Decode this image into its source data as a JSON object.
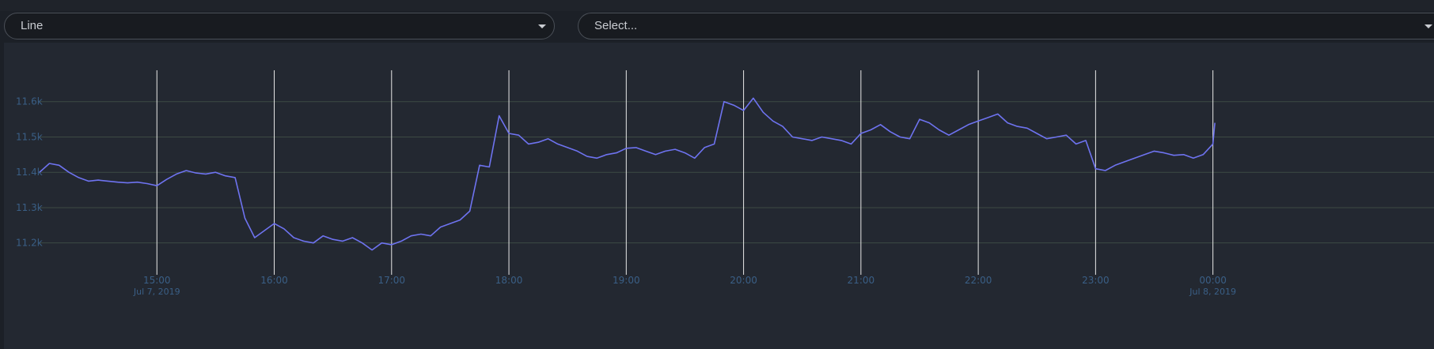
{
  "controls": {
    "chart_type": "Line",
    "series_placeholder": "Select..."
  },
  "colors": {
    "background": "#1c2027",
    "panel": "#232831",
    "line": "#6e73f0",
    "gridline": "#3d4a44",
    "vline": "#e8e8e8",
    "label": "#3a5f86"
  },
  "chart_data": {
    "type": "line",
    "title": "",
    "xlabel": "",
    "ylabel": "",
    "ylim": [
      11130,
      11700
    ],
    "xlim": [
      "2019-07-07 14:00",
      "2019-07-08 00:05"
    ],
    "grid": "horizontal",
    "y_ticks": [
      11200,
      11300,
      11400,
      11500,
      11600
    ],
    "y_tick_labels": [
      "11.2k",
      "11.3k",
      "11.4k",
      "11.5k",
      "11.6k"
    ],
    "x_ticks": [
      "15:00",
      "16:00",
      "17:00",
      "18:00",
      "19:00",
      "20:00",
      "21:00",
      "22:00",
      "23:00",
      "00:00"
    ],
    "x_date_labels": [
      {
        "tick": "15:00",
        "label": "Jul 7, 2019"
      },
      {
        "tick": "00:00",
        "label": "Jul 8, 2019"
      }
    ],
    "series": [
      {
        "time": [
          "14:00",
          "14:05",
          "14:10",
          "14:15",
          "14:20",
          "14:25",
          "14:30",
          "14:35",
          "14:40",
          "14:45",
          "14:50",
          "14:55",
          "15:00",
          "15:05",
          "15:10",
          "15:15",
          "15:20",
          "15:25",
          "15:30",
          "15:35",
          "15:40",
          "15:45",
          "15:50",
          "15:55",
          "16:00",
          "16:05",
          "16:10",
          "16:15",
          "16:20",
          "16:25",
          "16:30",
          "16:35",
          "16:40",
          "16:45",
          "16:50",
          "16:55",
          "17:00",
          "17:05",
          "17:10",
          "17:15",
          "17:20",
          "17:25",
          "17:30",
          "17:35",
          "17:40",
          "17:45",
          "17:50",
          "17:55",
          "18:00",
          "18:05",
          "18:10",
          "18:15",
          "18:20",
          "18:25",
          "18:30",
          "18:35",
          "18:40",
          "18:45",
          "18:50",
          "18:55",
          "19:00",
          "19:05",
          "19:10",
          "19:15",
          "19:20",
          "19:25",
          "19:30",
          "19:35",
          "19:40",
          "19:45",
          "19:50",
          "19:55",
          "20:00",
          "20:05",
          "20:10",
          "20:15",
          "20:20",
          "20:25",
          "20:30",
          "20:35",
          "20:40",
          "20:45",
          "20:50",
          "20:55",
          "21:00",
          "21:05",
          "21:10",
          "21:15",
          "21:20",
          "21:25",
          "21:30",
          "21:35",
          "21:40",
          "21:45",
          "21:50",
          "21:55",
          "22:00",
          "22:05",
          "22:10",
          "22:15",
          "22:20",
          "22:25",
          "22:30",
          "22:35",
          "22:40",
          "22:45",
          "22:50",
          "22:55",
          "23:00",
          "23:05",
          "23:10",
          "23:15",
          "23:20",
          "23:25",
          "23:30",
          "23:35",
          "23:40",
          "23:45",
          "23:50",
          "23:55",
          "00:00",
          "00:01"
        ],
        "values": [
          11400,
          11425,
          11420,
          11400,
          11385,
          11375,
          11378,
          11375,
          11372,
          11370,
          11372,
          11368,
          11362,
          11380,
          11395,
          11405,
          11398,
          11395,
          11400,
          11390,
          11385,
          11270,
          11215,
          11235,
          11255,
          11240,
          11215,
          11205,
          11200,
          11220,
          11210,
          11205,
          11215,
          11200,
          11180,
          11200,
          11195,
          11205,
          11220,
          11225,
          11220,
          11245,
          11255,
          11265,
          11290,
          11420,
          11415,
          11560,
          11510,
          11505,
          11480,
          11485,
          11495,
          11480,
          11470,
          11460,
          11445,
          11440,
          11450,
          11455,
          11468,
          11470,
          11460,
          11450,
          11460,
          11465,
          11455,
          11440,
          11470,
          11480,
          11600,
          11590,
          11575,
          11610,
          11570,
          11545,
          11530,
          11500,
          11495,
          11490,
          11500,
          11495,
          11490,
          11480,
          11510,
          11520,
          11535,
          11515,
          11500,
          11495,
          11550,
          11540,
          11520,
          11505,
          11520,
          11535,
          11545,
          11555,
          11565,
          11540,
          11530,
          11525,
          11510,
          11495,
          11500,
          11505,
          11480,
          11490,
          11410,
          11405,
          11420,
          11430,
          11440,
          11450,
          11460,
          11455,
          11448,
          11450,
          11440,
          11450,
          11480,
          11540
        ]
      }
    ]
  }
}
